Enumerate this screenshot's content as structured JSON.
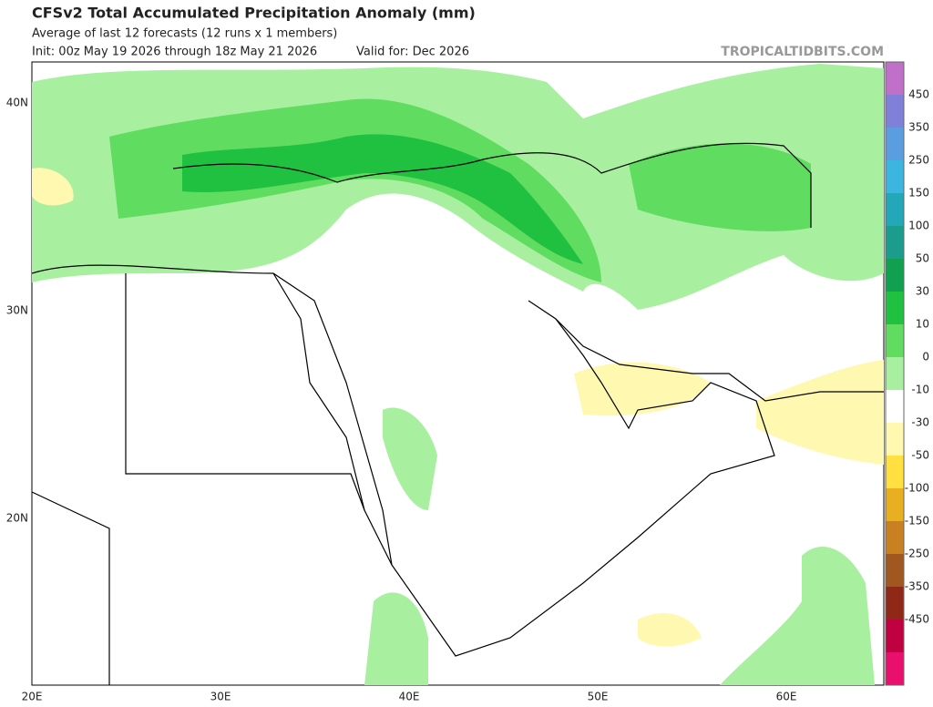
{
  "header": {
    "title": "CFSv2 Total Accumulated Precipitation Anomaly (mm)",
    "subtitle": "Average of last 12 forecasts (12 runs x 1 members)",
    "init": "Init: 00z May 19 2026 through 18z May 21 2026",
    "valid": "Valid for: Dec 2026",
    "watermark": "TROPICALTIDBITS.COM"
  },
  "map": {
    "lat_labels": [
      "40N",
      "30N",
      "20N"
    ],
    "lon_labels": [
      "20E",
      "30E",
      "40E",
      "50E",
      "60E"
    ]
  },
  "colorbar": {
    "labels": [
      "450",
      "350",
      "250",
      "150",
      "100",
      "50",
      "30",
      "10",
      "0",
      "-10",
      "-30",
      "-50",
      "-100",
      "-150",
      "-250",
      "-350",
      "-450"
    ],
    "colors": [
      "#c070c8",
      "#8080d8",
      "#5a9ee0",
      "#3cb6e0",
      "#22a8b8",
      "#1c9c8c",
      "#10a050",
      "#20c040",
      "#60dc60",
      "#a8f0a0",
      "#ffffff",
      "#fff8b0",
      "#ffe040",
      "#e8b020",
      "#c88020",
      "#a05820",
      "#902818",
      "#c00040",
      "#e8106c"
    ]
  }
}
